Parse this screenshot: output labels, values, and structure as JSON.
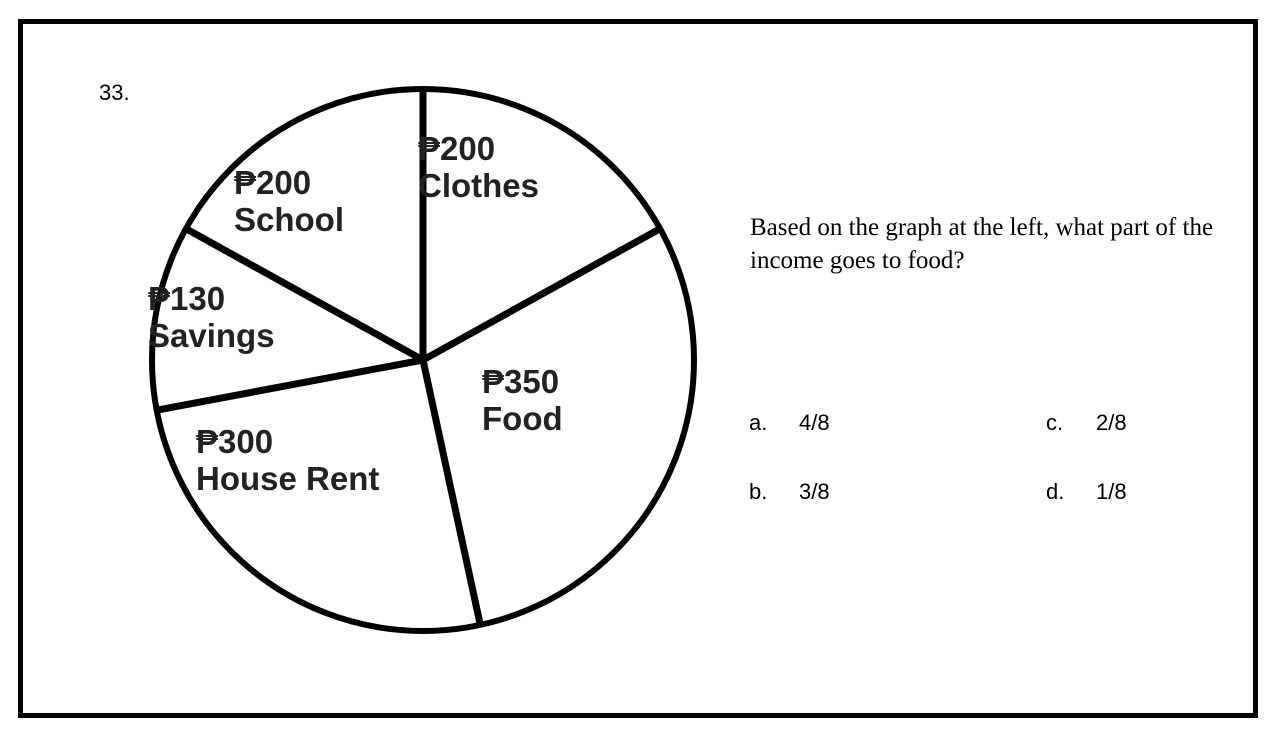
{
  "question": {
    "number": "33.",
    "text": "Based on the graph at the left, what part of the income goes to food?",
    "choices": [
      {
        "letter": "a.",
        "text": "4/8"
      },
      {
        "letter": "b.",
        "text": "3/8"
      },
      {
        "letter": "c.",
        "text": "2/8"
      },
      {
        "letter": "d.",
        "text": "1/8"
      }
    ]
  },
  "chart_data": {
    "type": "pie",
    "title": "",
    "slices": [
      {
        "amount": "₱200",
        "label": "Clothes",
        "value": 200
      },
      {
        "amount": "₱350",
        "label": "Food",
        "value": 350
      },
      {
        "amount": "₱300",
        "label": "House Rent",
        "value": 300
      },
      {
        "amount": "₱130",
        "label": "Savings",
        "value": 130
      },
      {
        "amount": "₱200",
        "label": "School",
        "value": 200
      }
    ],
    "colors": {
      "stroke": "#000000",
      "fill": "#ffffff",
      "text": "#222222"
    }
  }
}
